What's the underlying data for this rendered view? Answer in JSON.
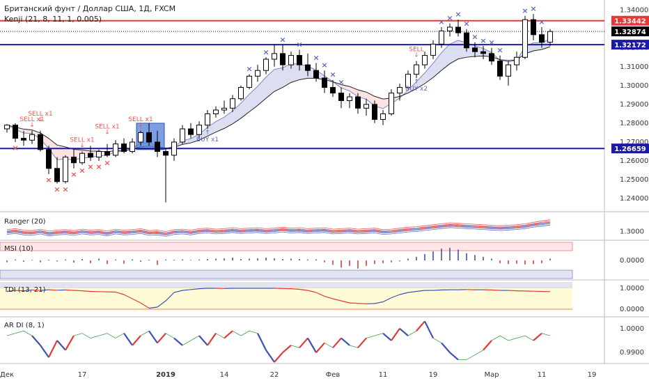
{
  "header": {
    "symbol_title": "Британский фунт / Доллар США, 1Д, FXCM",
    "indicator_label": "Kenji (21, 8, 11, 1, 0.005)"
  },
  "colors": {
    "up": "#ffffff",
    "down": "#000000",
    "red_line": "#e53935",
    "blue_line": "#1a1aa6",
    "sell": "#ef5350",
    "buy": "#5c6bc0"
  },
  "price_axis": {
    "ticks": [
      "1.34000",
      "1.32000",
      "1.31000",
      "1.30000",
      "1.29000",
      "1.28000",
      "1.27000",
      "1.26000",
      "1.25000",
      "1.24000"
    ],
    "ylim": [
      1.2345,
      1.3432
    ]
  },
  "price_levels": [
    {
      "name": "resistance",
      "value": 1.33442,
      "label": "1.33442",
      "color": "#e53935"
    },
    {
      "name": "last",
      "value": 1.32874,
      "label": "1.32874",
      "color": "#000000"
    },
    {
      "name": "support-upper",
      "value": 1.32172,
      "label": "1.32172",
      "color": "#1a1aa6"
    },
    {
      "name": "support-lower",
      "value": 1.26659,
      "label": "1.26659",
      "color": "#1a1aa6"
    }
  ],
  "date_axis": {
    "labels": [
      {
        "text": "Дек",
        "bar": 0,
        "bold": false
      },
      {
        "text": "17",
        "bar": 9,
        "bold": false
      },
      {
        "text": "2019",
        "bar": 19,
        "bold": true
      },
      {
        "text": "14",
        "bar": 26,
        "bold": false
      },
      {
        "text": "22",
        "bar": 32,
        "bold": false
      },
      {
        "text": "Фев",
        "bar": 39,
        "bold": false
      },
      {
        "text": "11",
        "bar": 45,
        "bold": false
      },
      {
        "text": "19",
        "bar": 51,
        "bold": false
      },
      {
        "text": "Мар",
        "bar": 58,
        "bold": false
      },
      {
        "text": "11",
        "bar": 64,
        "bold": false
      },
      {
        "text": "19",
        "bar": 70,
        "bold": false
      }
    ]
  },
  "chart_data": [
    {
      "type": "candlestick",
      "name": "GBPUSD daily",
      "ohlc": [
        [
          1.277,
          1.2795,
          1.275,
          1.279
        ],
        [
          1.279,
          1.28,
          1.27,
          1.272
        ],
        [
          1.272,
          1.276,
          1.268,
          1.271
        ],
        [
          1.271,
          1.276,
          1.269,
          1.274
        ],
        [
          1.274,
          1.276,
          1.265,
          1.266
        ],
        [
          1.266,
          1.268,
          1.253,
          1.256
        ],
        [
          1.256,
          1.262,
          1.248,
          1.249
        ],
        [
          1.249,
          1.263,
          1.248,
          1.262
        ],
        [
          1.262,
          1.266,
          1.256,
          1.259
        ],
        [
          1.259,
          1.265,
          1.258,
          1.264
        ],
        [
          1.264,
          1.268,
          1.26,
          1.262
        ],
        [
          1.262,
          1.266,
          1.26,
          1.265
        ],
        [
          1.265,
          1.269,
          1.262,
          1.263
        ],
        [
          1.263,
          1.271,
          1.262,
          1.269
        ],
        [
          1.269,
          1.272,
          1.264,
          1.265
        ],
        [
          1.265,
          1.272,
          1.264,
          1.27
        ],
        [
          1.27,
          1.276,
          1.268,
          1.275
        ],
        [
          1.275,
          1.28,
          1.268,
          1.27
        ],
        [
          1.27,
          1.276,
          1.262,
          1.265
        ],
        [
          1.265,
          1.267,
          1.238,
          1.263
        ],
        [
          1.263,
          1.272,
          1.26,
          1.27
        ],
        [
          1.27,
          1.279,
          1.269,
          1.277
        ],
        [
          1.277,
          1.28,
          1.272,
          1.274
        ],
        [
          1.274,
          1.281,
          1.272,
          1.279
        ],
        [
          1.279,
          1.287,
          1.277,
          1.285
        ],
        [
          1.285,
          1.289,
          1.283,
          1.287
        ],
        [
          1.287,
          1.292,
          1.285,
          1.288
        ],
        [
          1.288,
          1.295,
          1.286,
          1.293
        ],
        [
          1.293,
          1.3,
          1.292,
          1.299
        ],
        [
          1.299,
          1.306,
          1.298,
          1.305
        ],
        [
          1.305,
          1.311,
          1.302,
          1.308
        ],
        [
          1.308,
          1.315,
          1.306,
          1.314
        ],
        [
          1.314,
          1.322,
          1.31,
          1.317
        ],
        [
          1.317,
          1.3215,
          1.308,
          1.311
        ],
        [
          1.311,
          1.318,
          1.309,
          1.316
        ],
        [
          1.316,
          1.319,
          1.308,
          1.311
        ],
        [
          1.311,
          1.317,
          1.305,
          1.308
        ],
        [
          1.308,
          1.312,
          1.302,
          1.304
        ],
        [
          1.304,
          1.308,
          1.296,
          1.299
        ],
        [
          1.299,
          1.303,
          1.294,
          1.296
        ],
        [
          1.296,
          1.299,
          1.288,
          1.292
        ],
        [
          1.292,
          1.296,
          1.288,
          1.294
        ],
        [
          1.294,
          1.296,
          1.285,
          1.288
        ],
        [
          1.288,
          1.293,
          1.284,
          1.29
        ],
        [
          1.29,
          1.292,
          1.28,
          1.282
        ],
        [
          1.282,
          1.287,
          1.279,
          1.285
        ],
        [
          1.285,
          1.298,
          1.284,
          1.296
        ],
        [
          1.296,
          1.301,
          1.292,
          1.299
        ],
        [
          1.299,
          1.308,
          1.298,
          1.306
        ],
        [
          1.306,
          1.313,
          1.304,
          1.311
        ],
        [
          1.311,
          1.318,
          1.309,
          1.316
        ],
        [
          1.316,
          1.324,
          1.314,
          1.322
        ],
        [
          1.322,
          1.331,
          1.32,
          1.329
        ],
        [
          1.329,
          1.333,
          1.326,
          1.331
        ],
        [
          1.331,
          1.335,
          1.326,
          1.328
        ],
        [
          1.328,
          1.33,
          1.318,
          1.32
        ],
        [
          1.32,
          1.323,
          1.315,
          1.318
        ],
        [
          1.318,
          1.321,
          1.314,
          1.317
        ],
        [
          1.317,
          1.32,
          1.311,
          1.313
        ],
        [
          1.313,
          1.316,
          1.303,
          1.305
        ],
        [
          1.305,
          1.313,
          1.3,
          1.311
        ],
        [
          1.311,
          1.318,
          1.308,
          1.315
        ],
        [
          1.315,
          1.337,
          1.314,
          1.335
        ],
        [
          1.335,
          1.338,
          1.324,
          1.327
        ],
        [
          1.327,
          1.331,
          1.32,
          1.323
        ],
        [
          1.323,
          1.33,
          1.321,
          1.3287
        ]
      ]
    },
    {
      "type": "line",
      "name": "Ranger (20)",
      "ylim": [
        1.285,
        1.335
      ],
      "tick_labels": [
        "1.3000"
      ],
      "tick_values": [
        1.3
      ],
      "series": [
        {
          "color": "#ef5350",
          "values": [
            1.301,
            1.303,
            1.3,
            1.299,
            1.302,
            1.298,
            1.3,
            1.301,
            1.299,
            1.302,
            1.3,
            1.301,
            1.298,
            1.302,
            1.3,
            1.301,
            1.303,
            1.299,
            1.3,
            1.297,
            1.301,
            1.302,
            1.3,
            1.303,
            1.304,
            1.302,
            1.303,
            1.305,
            1.303,
            1.304,
            1.305,
            1.303,
            1.304,
            1.306,
            1.304,
            1.305,
            1.303,
            1.304,
            1.305,
            1.302,
            1.303,
            1.304,
            1.302,
            1.303,
            1.304,
            1.301,
            1.302,
            1.304,
            1.306,
            1.307,
            1.309,
            1.311,
            1.313,
            1.315,
            1.314,
            1.313,
            1.312,
            1.311,
            1.31,
            1.309,
            1.31,
            1.311,
            1.313,
            1.316,
            1.319,
            1.321
          ]
        },
        {
          "color": "#5c6bc0",
          "values": [
            1.297,
            1.299,
            1.296,
            1.295,
            1.298,
            1.294,
            1.296,
            1.297,
            1.295,
            1.298,
            1.296,
            1.297,
            1.294,
            1.298,
            1.296,
            1.297,
            1.299,
            1.295,
            1.296,
            1.293,
            1.297,
            1.298,
            1.296,
            1.299,
            1.3,
            1.298,
            1.299,
            1.301,
            1.299,
            1.3,
            1.301,
            1.299,
            1.3,
            1.302,
            1.3,
            1.301,
            1.299,
            1.3,
            1.301,
            1.298,
            1.299,
            1.3,
            1.298,
            1.299,
            1.3,
            1.297,
            1.298,
            1.3,
            1.302,
            1.303,
            1.305,
            1.307,
            1.309,
            1.311,
            1.31,
            1.309,
            1.308,
            1.307,
            1.306,
            1.305,
            1.306,
            1.307,
            1.309,
            1.312,
            1.314,
            1.316
          ]
        }
      ]
    },
    {
      "type": "bar",
      "name": "MSI (10)",
      "ylim": [
        -1,
        1
      ],
      "tick_labels": [
        "0.0000"
      ],
      "tick_values": [
        0
      ],
      "values": [
        -0.1,
        0.05,
        -0.08,
        0.03,
        -0.1,
        0.04,
        -0.06,
        0.05,
        -0.12,
        0.08,
        -0.15,
        0.1,
        -0.2,
        0.05,
        -0.18,
        0.06,
        -0.08,
        0.04,
        -0.25,
        0.05,
        0.04,
        0.06,
        0.03,
        0.05,
        0.08,
        0.1,
        0.12,
        0.15,
        0.08,
        0.1,
        0.12,
        0.15,
        0.12,
        0.08,
        0.1,
        0.08,
        0.05,
        0.06,
        -0.1,
        -0.25,
        -0.4,
        -0.3,
        -0.45,
        -0.3,
        -0.2,
        -0.15,
        -0.1,
        -0.05,
        0.1,
        0.2,
        0.35,
        0.5,
        0.65,
        0.7,
        0.6,
        0.4,
        0.3,
        0.2,
        0.1,
        -0.15,
        -0.2,
        -0.18,
        -0.22,
        -0.2,
        -0.15,
        0.1
      ]
    },
    {
      "type": "line",
      "name": "TDI (13, 21)",
      "ylim": [
        -0.3,
        1.3
      ],
      "tick_labels": [
        "1.0000",
        "0.0000"
      ],
      "tick_values": [
        1.0,
        0.0
      ],
      "values": [
        0.85,
        0.9,
        0.88,
        0.92,
        0.9,
        0.93,
        0.91,
        0.92,
        0.9,
        0.88,
        0.85,
        0.84,
        0.83,
        0.82,
        0.7,
        0.5,
        0.3,
        0.05,
        0.1,
        0.4,
        0.8,
        0.9,
        0.94,
        0.98,
        1.0,
        1.0,
        0.99,
        1.0,
        1.0,
        1.0,
        1.0,
        1.0,
        1.0,
        0.99,
        0.98,
        0.95,
        0.9,
        0.8,
        0.62,
        0.5,
        0.4,
        0.3,
        0.28,
        0.26,
        0.27,
        0.35,
        0.55,
        0.7,
        0.8,
        0.85,
        0.9,
        0.9,
        0.92,
        0.93,
        0.93,
        0.94,
        0.93,
        0.93,
        0.92,
        0.9,
        0.9,
        0.88,
        0.87,
        0.86,
        0.85,
        0.84
      ]
    },
    {
      "type": "line",
      "name": "AR DI (8, 1)",
      "ylim": [
        0.986,
        1.004
      ],
      "tick_labels": [
        "1.0000",
        "0.9900"
      ],
      "tick_values": [
        1.0,
        0.99
      ],
      "values": [
        0.997,
        0.998,
        0.999,
        0.997,
        0.993,
        0.988,
        0.995,
        0.991,
        0.997,
        0.998,
        0.996,
        0.997,
        0.998,
        0.996,
        0.998,
        0.993,
        0.997,
        0.999,
        0.994,
        0.998,
        0.996,
        0.993,
        0.995,
        0.997,
        0.993,
        0.998,
        0.996,
        0.999,
        0.997,
        0.999,
        0.998,
        0.991,
        0.986,
        0.99,
        0.993,
        0.992,
        0.996,
        0.99,
        0.994,
        0.992,
        0.996,
        0.993,
        0.992,
        0.996,
        0.997,
        0.998,
        0.995,
        1.0,
        0.997,
        0.999,
        1.003,
        0.996,
        0.994,
        0.99,
        0.987,
        0.987,
        0.989,
        0.991,
        0.995,
        0.997,
        0.995,
        0.996,
        0.997,
        0.995,
        0.998,
        0.997
      ]
    }
  ],
  "panels": {
    "ranger_title": "Ranger (20)",
    "msi_title": "MSI (10)",
    "tdi_title": "TDI (13, 21)",
    "ardi_title": "AR DI (8, 1)"
  },
  "signals": [
    {
      "label": "SELL x1",
      "bar": 3,
      "kind": "sell"
    },
    {
      "label": "SELL x1",
      "bar": 4,
      "kind": "sell"
    },
    {
      "label": "SELL x1",
      "bar": 9,
      "kind": "sell"
    },
    {
      "label": "SELL x1",
      "bar": 12,
      "kind": "sell"
    },
    {
      "label": "SELL x1",
      "bar": 16,
      "kind": "sell"
    },
    {
      "label": "BUY x1",
      "bar": 24,
      "kind": "buy"
    },
    {
      "label": "SELL",
      "bar": 49,
      "kind": "sell"
    },
    {
      "label": "BUY x2",
      "bar": 49,
      "kind": "buy"
    }
  ]
}
